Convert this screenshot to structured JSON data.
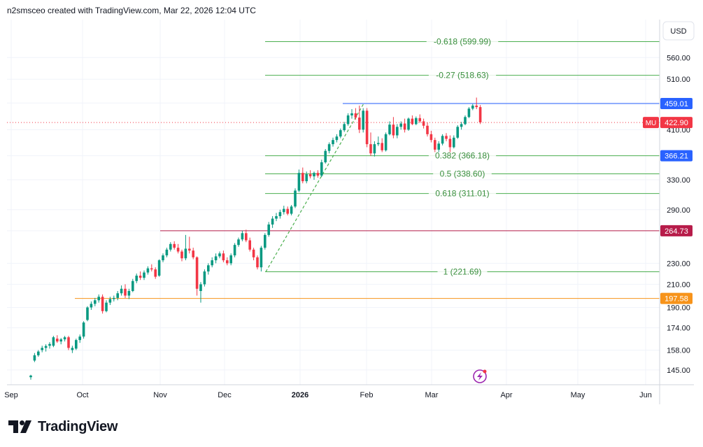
{
  "header": {
    "attribution": "n2smsceo created with TradingView.com, Mar 22, 2026 12:04 UTC"
  },
  "brand": {
    "name": "TradingView"
  },
  "currency_button": {
    "label": "USD"
  },
  "colors": {
    "up": "#089981",
    "down": "#f23645",
    "fib": "#4caf50",
    "fib_text": "#388e3c",
    "blue": "#2962ff",
    "red_line": "#b71c4a",
    "orange": "#f7931a",
    "grid": "#f0f3fa"
  },
  "chart_data": {
    "type": "candlestick",
    "symbol": "MU",
    "y_scale": "log",
    "ylim": [
      136,
      660
    ],
    "x_ticks": [
      "Sep",
      "Oct",
      "Nov",
      "Dec",
      "2026",
      "Feb",
      "Mar",
      "Apr",
      "May",
      "Jun"
    ],
    "y_ticks": [
      "560.00",
      "510.00",
      "460.00",
      "410.00",
      "366.21",
      "330.00",
      "290.00",
      "264.73",
      "230.00",
      "210.00",
      "190.00",
      "174.00",
      "158.00",
      "145.00"
    ],
    "price_labels": [
      {
        "text": "459.01",
        "value": 459.01,
        "color": "#2962ff"
      },
      {
        "text": "422.90",
        "value": 422.9,
        "color": "#f23645",
        "symbol": "MU"
      },
      {
        "text": "366.21",
        "value": 366.21,
        "color": "#2962ff"
      },
      {
        "text": "264.73",
        "value": 264.73,
        "color": "#b71c4a"
      },
      {
        "text": "197.58",
        "value": 197.58,
        "color": "#f7931a"
      }
    ],
    "fib_levels": [
      {
        "label": "-0.618 (599.99)",
        "value": 599.99
      },
      {
        "label": "-0.27 (518.63)",
        "value": 518.63
      },
      {
        "label": "0.382 (366.18)",
        "value": 366.18
      },
      {
        "label": "0.5 (338.60)",
        "value": 338.6
      },
      {
        "label": "0.618 (311.01)",
        "value": 311.01
      },
      {
        "label": "1 (221.69)",
        "value": 221.69
      }
    ],
    "last_price": 422.9,
    "candles": [
      [
        140.5,
        142.0,
        139.0,
        141.5
      ],
      [
        151.0,
        156.0,
        150.0,
        154.5
      ],
      [
        154.5,
        158.0,
        153.5,
        157.0
      ],
      [
        158.0,
        161.0,
        156.5,
        159.5
      ],
      [
        159.5,
        162.0,
        157.0,
        160.8
      ],
      [
        161.0,
        163.5,
        159.0,
        162.2
      ],
      [
        161.0,
        168.0,
        160.0,
        167.0
      ],
      [
        166.0,
        168.5,
        163.0,
        164.0
      ],
      [
        164.0,
        166.5,
        162.0,
        165.5
      ],
      [
        165.5,
        168.0,
        164.0,
        167.0
      ],
      [
        167.0,
        168.0,
        158.0,
        159.5
      ],
      [
        158.0,
        161.0,
        156.0,
        159.5
      ],
      [
        159.0,
        166.0,
        158.0,
        165.0
      ],
      [
        165.0,
        169.0,
        163.0,
        167.5
      ],
      [
        167.5,
        179.0,
        166.0,
        178.0
      ],
      [
        180.0,
        191.0,
        179.0,
        190.0
      ],
      [
        190.0,
        195.0,
        188.0,
        193.0
      ],
      [
        193.0,
        198.0,
        191.0,
        196.0
      ],
      [
        196.0,
        201.0,
        194.0,
        199.0
      ],
      [
        199.0,
        201.0,
        185.0,
        187.0
      ],
      [
        187.0,
        196.0,
        186.0,
        194.0
      ],
      [
        194.0,
        199.0,
        192.0,
        197.0
      ],
      [
        197.0,
        200.0,
        195.0,
        198.0
      ],
      [
        198.0,
        204.0,
        196.0,
        202.0
      ],
      [
        202.0,
        209.0,
        200.0,
        206.0
      ],
      [
        206.0,
        210.0,
        198.0,
        200.0
      ],
      [
        200.0,
        206.0,
        197.0,
        204.0
      ],
      [
        204.0,
        215.0,
        203.0,
        213.0
      ],
      [
        213.0,
        220.0,
        211.0,
        218.0
      ],
      [
        218.0,
        222.0,
        214.0,
        216.0
      ],
      [
        216.0,
        223.0,
        214.0,
        221.0
      ],
      [
        221.0,
        227.0,
        219.0,
        225.0
      ],
      [
        225.0,
        229.0,
        222.0,
        224.0
      ],
      [
        224.0,
        226.0,
        215.0,
        217.0
      ],
      [
        218.0,
        234.0,
        217.0,
        233.0
      ],
      [
        233.0,
        240.0,
        231.0,
        238.0
      ],
      [
        238.0,
        246.0,
        236.0,
        244.0
      ],
      [
        244.0,
        252.0,
        242.0,
        250.0
      ],
      [
        250.0,
        253.0,
        244.0,
        246.0
      ],
      [
        246.0,
        250.0,
        240.0,
        242.0
      ],
      [
        242.0,
        244.0,
        232.0,
        235.0
      ],
      [
        235.0,
        260.0,
        233.0,
        245.0
      ],
      [
        245.0,
        258.0,
        240.0,
        243.0
      ],
      [
        243.0,
        246.0,
        234.0,
        236.0
      ],
      [
        236.0,
        237.0,
        200.0,
        206.0
      ],
      [
        204.0,
        212.0,
        194.0,
        210.0
      ],
      [
        210.0,
        224.0,
        208.0,
        222.0
      ],
      [
        222.0,
        230.0,
        219.0,
        228.0
      ],
      [
        228.0,
        236.0,
        226.0,
        233.0
      ],
      [
        233.0,
        240.0,
        230.0,
        237.0
      ],
      [
        237.0,
        242.0,
        235.0,
        240.0
      ],
      [
        240.0,
        243.0,
        231.0,
        233.0
      ],
      [
        233.0,
        236.0,
        228.0,
        230.0
      ],
      [
        230.0,
        240.0,
        228.0,
        238.0
      ],
      [
        238.0,
        251.0,
        236.0,
        249.0
      ],
      [
        249.0,
        257.0,
        247.0,
        255.0
      ],
      [
        255.0,
        265.0,
        253.0,
        262.0
      ],
      [
        262.0,
        266.0,
        252.0,
        254.0
      ],
      [
        254.0,
        257.0,
        242.0,
        244.0
      ],
      [
        244.0,
        246.0,
        233.0,
        236.0
      ],
      [
        236.0,
        238.0,
        224.0,
        226.0
      ],
      [
        226.0,
        248.0,
        222.0,
        246.0
      ],
      [
        246.0,
        262.0,
        244.0,
        260.0
      ],
      [
        260.0,
        275.0,
        258.0,
        272.0
      ],
      [
        272.0,
        282.0,
        268.0,
        279.0
      ],
      [
        279.0,
        286.0,
        276.0,
        282.0
      ],
      [
        282.0,
        290.0,
        279.0,
        287.0
      ],
      [
        287.0,
        295.0,
        284.0,
        291.0
      ],
      [
        291.0,
        294.0,
        283.0,
        285.0
      ],
      [
        285.0,
        296.0,
        283.0,
        294.0
      ],
      [
        294.0,
        318.0,
        292.0,
        315.0
      ],
      [
        315.0,
        345.0,
        313.0,
        340.0
      ],
      [
        340.0,
        348.0,
        325.0,
        328.0
      ],
      [
        328.0,
        342.0,
        325.0,
        338.0
      ],
      [
        338.0,
        344.0,
        332.0,
        335.0
      ],
      [
        335.0,
        342.0,
        330.0,
        340.0
      ],
      [
        340.0,
        344.0,
        333.0,
        336.0
      ],
      [
        336.0,
        360.0,
        334.0,
        356.0
      ],
      [
        356.0,
        377.0,
        354.0,
        374.0
      ],
      [
        374.0,
        388.0,
        370.0,
        385.0
      ],
      [
        385.0,
        396.0,
        381.0,
        392.0
      ],
      [
        392.0,
        402.0,
        388.0,
        398.0
      ],
      [
        398.0,
        412.0,
        395.0,
        409.0
      ],
      [
        409.0,
        424.0,
        406.0,
        420.0
      ],
      [
        420.0,
        440.0,
        417.0,
        436.0
      ],
      [
        436.0,
        448.0,
        430.0,
        440.0
      ],
      [
        440.0,
        450.0,
        428.0,
        432.0
      ],
      [
        432.0,
        455.0,
        404.0,
        410.0
      ],
      [
        410.0,
        450.0,
        405.0,
        445.0
      ],
      [
        445.0,
        450.0,
        380.0,
        385.0
      ],
      [
        385.0,
        405.0,
        366.0,
        370.0
      ],
      [
        370.0,
        390.0,
        365.0,
        385.0
      ],
      [
        385.0,
        398.0,
        382.0,
        387.0
      ],
      [
        387.0,
        395.0,
        372.0,
        375.0
      ],
      [
        375.0,
        405.0,
        373.0,
        402.0
      ],
      [
        402.0,
        425.0,
        400.0,
        419.0
      ],
      [
        419.0,
        433.0,
        395.0,
        400.0
      ],
      [
        400.0,
        420.0,
        395.0,
        415.0
      ],
      [
        415.0,
        425.0,
        410.0,
        421.0
      ],
      [
        421.0,
        430.0,
        405.0,
        410.0
      ],
      [
        410.0,
        432.0,
        408.0,
        430.0
      ],
      [
        430.0,
        436.0,
        418.0,
        420.0
      ],
      [
        420.0,
        434.0,
        418.0,
        431.0
      ],
      [
        431.0,
        438.0,
        422.0,
        425.0
      ],
      [
        425.0,
        430.0,
        412.0,
        417.0
      ],
      [
        417.0,
        423.0,
        398.0,
        402.0
      ],
      [
        402.0,
        408.0,
        388.0,
        392.0
      ],
      [
        392.0,
        396.0,
        372.0,
        376.0
      ],
      [
        376.0,
        390.0,
        372.0,
        386.0
      ],
      [
        386.0,
        402.0,
        383.0,
        399.0
      ],
      [
        399.0,
        404.0,
        390.0,
        394.0
      ],
      [
        394.0,
        400.0,
        372.0,
        380.0
      ],
      [
        380.0,
        400.0,
        378.0,
        396.0
      ],
      [
        396.0,
        418.0,
        394.0,
        415.0
      ],
      [
        415.0,
        424.0,
        410.0,
        420.0
      ],
      [
        420.0,
        436.0,
        418.0,
        433.0
      ],
      [
        433.0,
        452.0,
        431.0,
        449.0
      ],
      [
        449.0,
        458.0,
        446.0,
        455.0
      ],
      [
        455.0,
        471.0,
        448.0,
        452.0
      ],
      [
        452.0,
        456.0,
        420.0,
        423.0
      ]
    ],
    "drawn_lines": [
      {
        "type": "horizontal",
        "value": 459.01,
        "color": "#2962ff"
      },
      {
        "type": "horizontal",
        "value": 264.73,
        "color": "#b71c4a"
      },
      {
        "type": "horizontal",
        "value": 197.58,
        "color": "#f7931a"
      },
      {
        "type": "trend",
        "from": 221.69,
        "to": 459.01,
        "style": "dashed",
        "color": "#4caf50"
      }
    ]
  }
}
